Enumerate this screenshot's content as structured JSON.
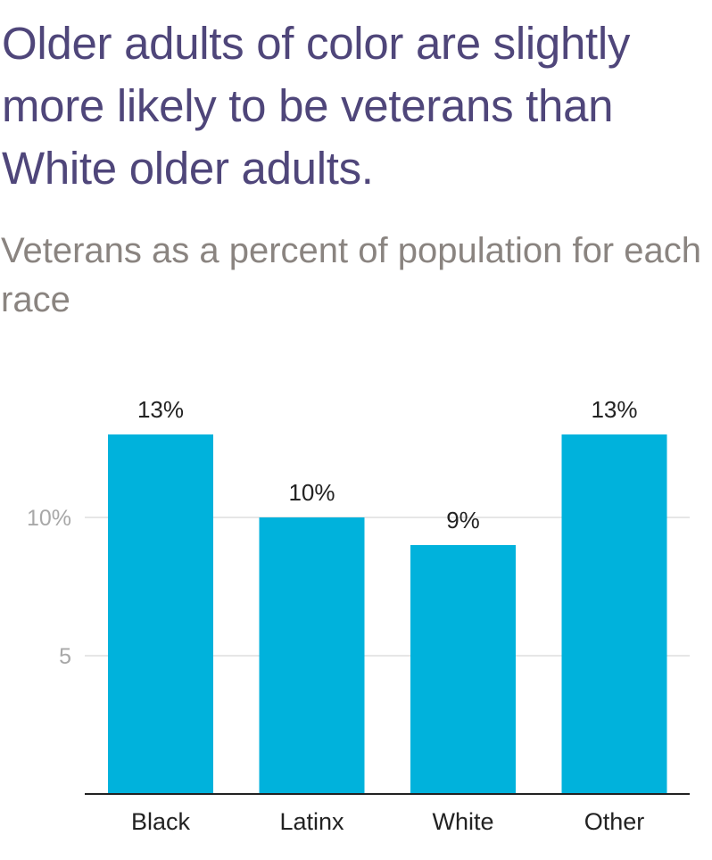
{
  "title": "Older adults of color are slightly more likely to be veterans than White older adults.",
  "subtitle": "Veterans as a percent of population for each race",
  "chart_data": {
    "type": "bar",
    "categories": [
      "Black",
      "Latinx",
      "White",
      "Other"
    ],
    "values": [
      13,
      10,
      9,
      13
    ],
    "value_labels": [
      "13%",
      "10%",
      "9%",
      "13%"
    ],
    "yticks": [
      5,
      10
    ],
    "ytick_labels": [
      "5",
      "10%"
    ],
    "ylim": [
      0,
      14.5
    ],
    "grid": true,
    "bar_color": "#00b2dc"
  }
}
